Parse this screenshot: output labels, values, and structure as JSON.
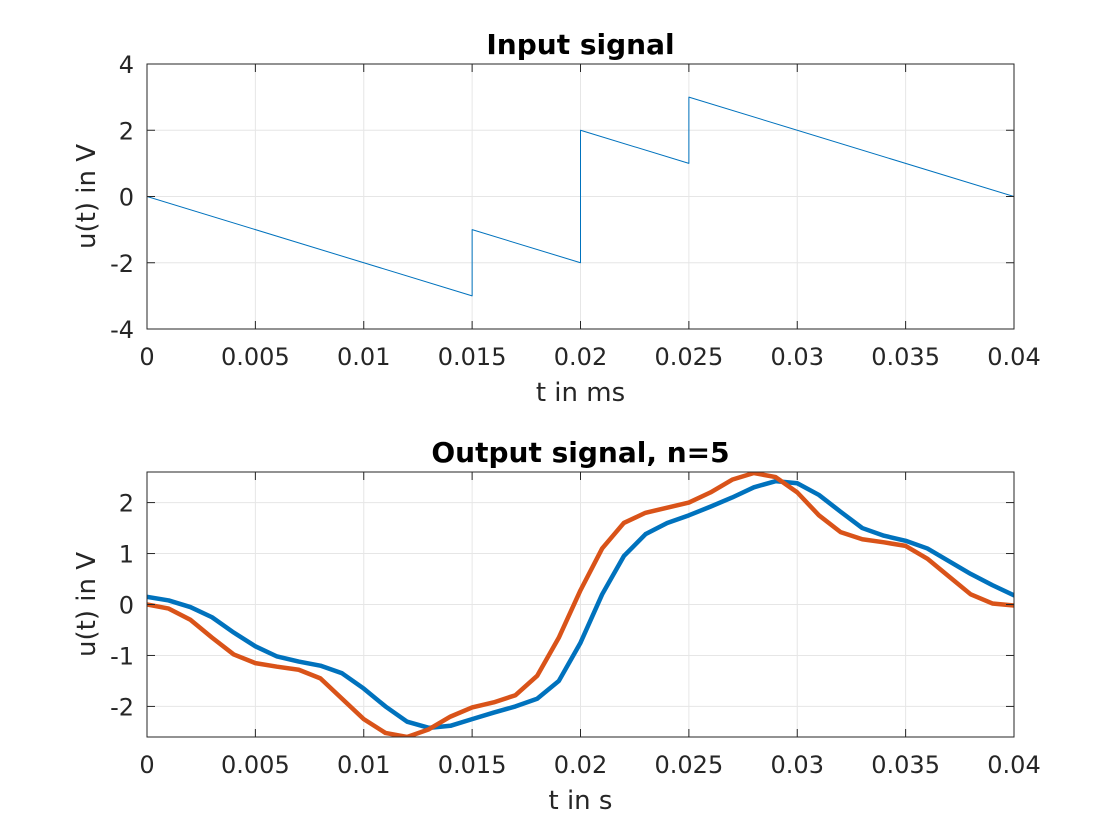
{
  "chart_data": [
    {
      "type": "line",
      "title": "Input  signal",
      "xlabel": "t in ms",
      "ylabel": "u(t) in V",
      "xlim": [
        0,
        0.04
      ],
      "ylim": [
        -4,
        4
      ],
      "xticks": [
        0,
        0.005,
        0.01,
        0.015,
        0.02,
        0.025,
        0.03,
        0.035,
        0.04
      ],
      "xtick_labels": [
        "0",
        "0.005",
        "0.01",
        "0.015",
        "0.02",
        "0.025",
        "0.03",
        "0.035",
        "0.04"
      ],
      "yticks": [
        -4,
        -2,
        0,
        2,
        4
      ],
      "ytick_labels": [
        "-4",
        "-2",
        "0",
        "2",
        "4"
      ],
      "grid": true,
      "series": [
        {
          "color": "#0072bd",
          "linewidth": "thin",
          "x": [
            0,
            0.015,
            0.015,
            0.02,
            0.02,
            0.025,
            0.025,
            0.04
          ],
          "y": [
            0,
            -3,
            -1,
            -2,
            2,
            1,
            3,
            0
          ]
        }
      ]
    },
    {
      "type": "line",
      "title": "Output signal, n=5",
      "xlabel": "t in s",
      "ylabel": "u(t) in V",
      "xlim": [
        0,
        0.04
      ],
      "ylim": [
        -2.6,
        2.6
      ],
      "xticks": [
        0,
        0.005,
        0.01,
        0.015,
        0.02,
        0.025,
        0.03,
        0.035,
        0.04
      ],
      "xtick_labels": [
        "0",
        "0.005",
        "0.01",
        "0.015",
        "0.02",
        "0.025",
        "0.03",
        "0.035",
        "0.04"
      ],
      "yticks": [
        -2,
        -1,
        0,
        1,
        2
      ],
      "ytick_labels": [
        "-2",
        "-1",
        "0",
        "1",
        "2"
      ],
      "grid": true,
      "series": [
        {
          "color": "#0072bd",
          "linewidth": "thick",
          "x": [
            0,
            0.001,
            0.002,
            0.003,
            0.004,
            0.005,
            0.006,
            0.007,
            0.008,
            0.009,
            0.01,
            0.011,
            0.012,
            0.013,
            0.014,
            0.015,
            0.016,
            0.017,
            0.018,
            0.019,
            0.02,
            0.021,
            0.022,
            0.023,
            0.024,
            0.025,
            0.026,
            0.027,
            0.028,
            0.029,
            0.03,
            0.031,
            0.032,
            0.033,
            0.034,
            0.035,
            0.036,
            0.037,
            0.038,
            0.039,
            0.04
          ],
          "y": [
            0.15,
            0.08,
            -0.05,
            -0.25,
            -0.55,
            -0.82,
            -1.02,
            -1.12,
            -1.2,
            -1.35,
            -1.65,
            -2.0,
            -2.3,
            -2.42,
            -2.38,
            -2.25,
            -2.12,
            -2.0,
            -1.85,
            -1.5,
            -0.75,
            0.2,
            0.95,
            1.38,
            1.6,
            1.75,
            1.92,
            2.1,
            2.3,
            2.42,
            2.38,
            2.15,
            1.82,
            1.5,
            1.35,
            1.25,
            1.1,
            0.85,
            0.6,
            0.38,
            0.18
          ]
        },
        {
          "color": "#d95319",
          "linewidth": "thick",
          "x": [
            0,
            0.001,
            0.002,
            0.003,
            0.004,
            0.005,
            0.006,
            0.007,
            0.008,
            0.009,
            0.01,
            0.011,
            0.012,
            0.013,
            0.014,
            0.015,
            0.016,
            0.017,
            0.018,
            0.019,
            0.02,
            0.021,
            0.022,
            0.023,
            0.024,
            0.025,
            0.026,
            0.027,
            0.028,
            0.029,
            0.03,
            0.031,
            0.032,
            0.033,
            0.034,
            0.035,
            0.036,
            0.037,
            0.038,
            0.039,
            0.04
          ],
          "y": [
            0.0,
            -0.08,
            -0.3,
            -0.65,
            -0.98,
            -1.15,
            -1.22,
            -1.28,
            -1.45,
            -1.85,
            -2.25,
            -2.52,
            -2.6,
            -2.45,
            -2.2,
            -2.02,
            -1.92,
            -1.78,
            -1.4,
            -0.65,
            0.28,
            1.1,
            1.6,
            1.8,
            1.9,
            2.0,
            2.2,
            2.45,
            2.58,
            2.5,
            2.2,
            1.75,
            1.42,
            1.28,
            1.22,
            1.15,
            0.9,
            0.55,
            0.2,
            0.02,
            -0.02
          ]
        }
      ]
    }
  ]
}
